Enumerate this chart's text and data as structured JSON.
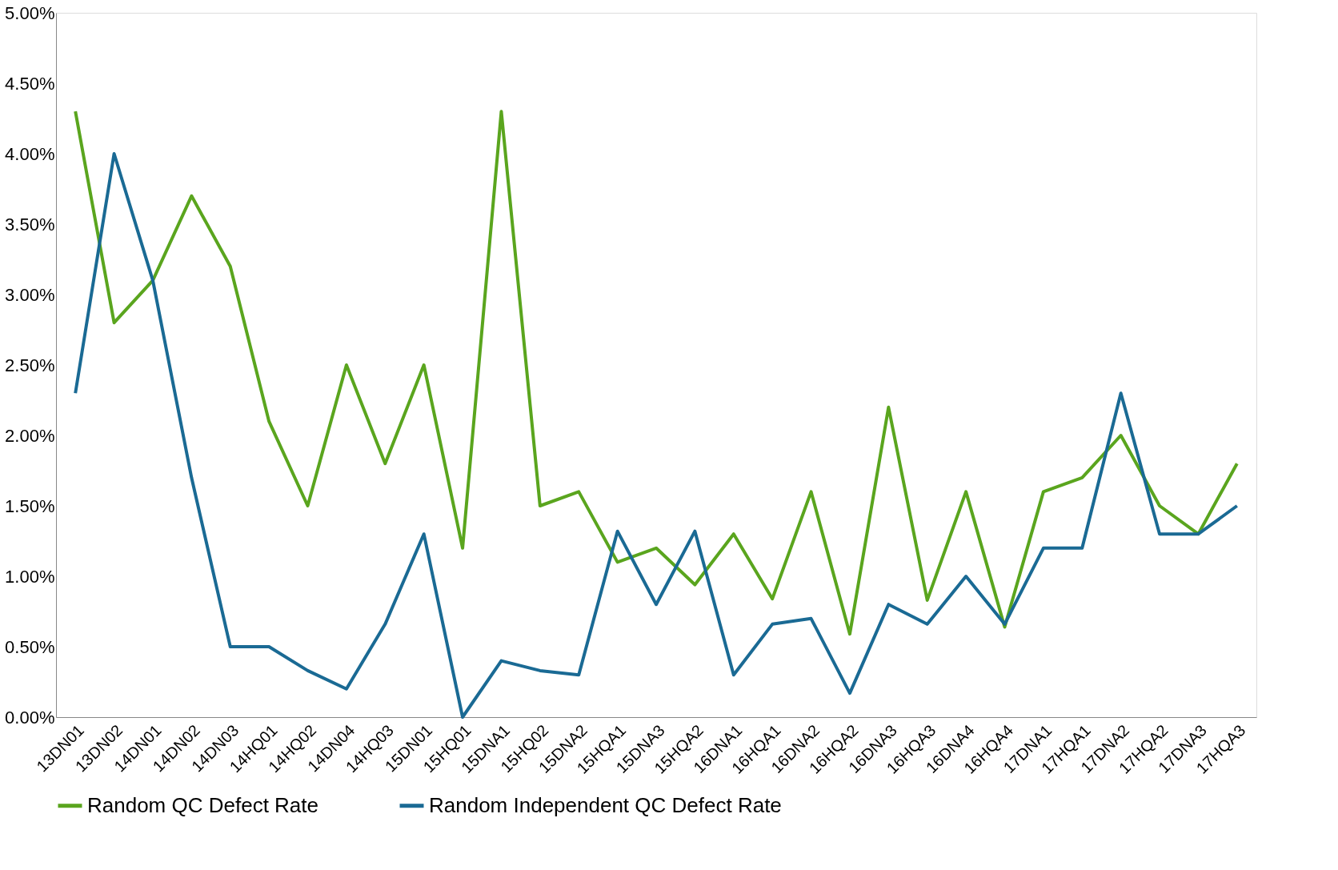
{
  "chart_data": {
    "type": "line",
    "categories": [
      "13DN01",
      "13DN02",
      "14DN01",
      "14DN02",
      "14DN03",
      "14HQ01",
      "14HQ02",
      "14DN04",
      "14HQ03",
      "15DN01",
      "15HQ01",
      "15DNA1",
      "15HQ02",
      "15DNA2",
      "15HQA1",
      "15DNA3",
      "15HQA2",
      "16DNA1",
      "16HQA1",
      "16DNA2",
      "16HQA2",
      "16DNA3",
      "16HQA3",
      "16DNA4",
      "16HQA4",
      "17DNA1",
      "17HQA1",
      "17DNA2",
      "17HQA2",
      "17DNA3",
      "17HQA3"
    ],
    "series": [
      {
        "name": "Random QC Defect Rate",
        "color": "#5aa51e",
        "values": [
          4.3,
          2.8,
          3.1,
          3.7,
          3.2,
          2.1,
          1.5,
          2.5,
          1.8,
          2.5,
          1.2,
          4.3,
          1.5,
          1.6,
          1.1,
          1.2,
          0.94,
          1.3,
          0.84,
          1.6,
          0.59,
          2.2,
          0.83,
          1.6,
          0.64,
          1.6,
          1.7,
          2.0,
          1.5,
          1.3,
          1.8
        ]
      },
      {
        "name": "Random Independent QC Defect Rate",
        "color": "#1a6a94",
        "values": [
          2.3,
          4.0,
          3.1,
          1.7,
          0.5,
          0.5,
          0.33,
          0.2,
          0.66,
          1.3,
          0.0,
          0.4,
          0.33,
          0.3,
          1.32,
          0.8,
          1.32,
          0.3,
          0.66,
          0.7,
          0.17,
          0.8,
          0.66,
          1.0,
          0.66,
          1.2,
          1.2,
          2.3,
          1.3,
          1.3,
          1.5
        ]
      }
    ],
    "ylim": [
      0,
      5
    ],
    "yticks": [
      {
        "value": 0,
        "label": "0.00%"
      },
      {
        "value": 0.5,
        "label": "0.50%"
      },
      {
        "value": 1,
        "label": "1.00%"
      },
      {
        "value": 1.5,
        "label": "1.50%"
      },
      {
        "value": 2,
        "label": "2.00%"
      },
      {
        "value": 2.5,
        "label": "2.50%"
      },
      {
        "value": 3,
        "label": "3.00%"
      },
      {
        "value": 3.5,
        "label": "3.50%"
      },
      {
        "value": 4,
        "label": "4.00%"
      },
      {
        "value": 4.5,
        "label": "4.50%"
      },
      {
        "value": 5,
        "label": "5.00%"
      }
    ],
    "grid": false,
    "legend": "bottom",
    "marker": "none",
    "line_style": "solid"
  }
}
